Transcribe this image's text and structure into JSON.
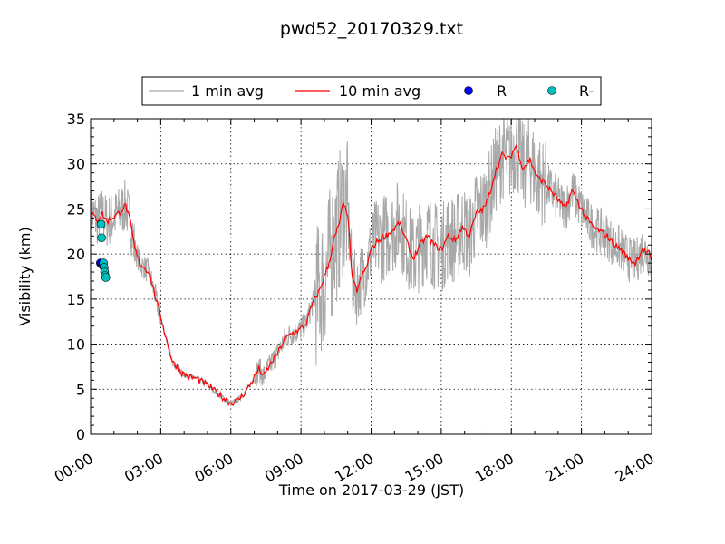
{
  "chart_data": {
    "type": "line",
    "title": "pwd52_20170329.txt",
    "xlabel": "Time on 2017-03-29 (JST)",
    "ylabel": "Visibility (km)",
    "xlim": [
      "00:00",
      "24:00"
    ],
    "ylim": [
      0,
      35
    ],
    "x_ticks": [
      "00:00",
      "03:00",
      "06:00",
      "09:00",
      "12:00",
      "15:00",
      "18:00",
      "21:00",
      "24:00"
    ],
    "y_ticks": [
      "0",
      "5",
      "10",
      "15",
      "20",
      "25",
      "30",
      "35"
    ],
    "grid": true,
    "legend_position": "top-center",
    "legend": [
      {
        "label": "1 min avg",
        "kind": "line",
        "color": "#a8a8a8"
      },
      {
        "label": "10 min avg",
        "kind": "line",
        "color": "#ff0000"
      },
      {
        "label": "R",
        "kind": "marker",
        "color": "#0000ff"
      },
      {
        "label": "R-",
        "kind": "marker",
        "color": "#00bfbf"
      }
    ],
    "series": [
      {
        "name": "10 min avg",
        "color": "#ff0000",
        "x_hours": [
          0.0,
          0.3,
          0.5,
          0.7,
          0.9,
          1.1,
          1.3,
          1.5,
          1.7,
          1.9,
          2.1,
          2.3,
          2.5,
          2.7,
          2.9,
          3.1,
          3.3,
          3.5,
          3.7,
          3.9,
          4.2,
          4.5,
          4.8,
          5.1,
          5.4,
          5.7,
          6.0,
          6.3,
          6.6,
          6.9,
          7.2,
          7.4,
          7.7,
          8.0,
          8.3,
          8.6,
          8.9,
          9.2,
          9.5,
          9.8,
          10.0,
          10.2,
          10.4,
          10.6,
          10.8,
          11.0,
          11.2,
          11.4,
          11.6,
          11.8,
          12.0,
          12.3,
          12.6,
          12.9,
          13.2,
          13.5,
          13.8,
          14.1,
          14.4,
          14.7,
          15.0,
          15.3,
          15.6,
          15.9,
          16.2,
          16.5,
          16.8,
          17.0,
          17.3,
          17.6,
          17.9,
          18.2,
          18.5,
          18.8,
          19.1,
          19.4,
          19.7,
          20.0,
          20.3,
          20.6,
          20.9,
          21.2,
          21.5,
          21.8,
          22.1,
          22.4,
          22.7,
          23.0,
          23.3,
          23.6,
          23.9,
          24.0
        ],
        "values": [
          24.5,
          23.8,
          24.5,
          23.6,
          24.0,
          24.3,
          24.8,
          25.4,
          23.5,
          20.5,
          19.0,
          18.5,
          18.0,
          16.0,
          14.0,
          12.0,
          10.0,
          8.0,
          7.5,
          6.8,
          6.4,
          6.2,
          5.8,
          5.3,
          4.6,
          4.0,
          3.4,
          3.8,
          4.6,
          5.8,
          7.3,
          6.4,
          7.8,
          9.0,
          10.5,
          11.2,
          11.5,
          12.2,
          14.5,
          16.0,
          17.5,
          19.0,
          21.5,
          23.0,
          25.5,
          24.5,
          17.0,
          16.0,
          17.5,
          18.5,
          20.5,
          21.5,
          22.0,
          22.5,
          23.5,
          21.5,
          19.5,
          21.0,
          22.0,
          21.0,
          20.5,
          22.0,
          21.5,
          23.0,
          22.0,
          24.5,
          25.0,
          26.0,
          29.0,
          31.0,
          30.5,
          32.0,
          29.5,
          30.5,
          28.5,
          28.0,
          27.0,
          26.0,
          25.0,
          27.0,
          25.5,
          24.0,
          23.0,
          22.5,
          22.0,
          21.0,
          20.5,
          19.5,
          19.0,
          20.5,
          20.0,
          19.0
        ]
      },
      {
        "name": "1 min avg",
        "color": "#a8a8a8"
      },
      {
        "name": "R",
        "color": "#0000ff",
        "x_hours": [
          0.42,
          0.5
        ],
        "values": [
          19.0,
          18.8
        ]
      },
      {
        "name": "R-",
        "color": "#00bfbf",
        "x_hours": [
          0.45,
          0.47,
          0.55,
          0.58,
          0.6,
          0.62,
          0.65
        ],
        "values": [
          23.3,
          21.8,
          19.0,
          18.5,
          18.0,
          17.6,
          17.4
        ]
      }
    ]
  }
}
